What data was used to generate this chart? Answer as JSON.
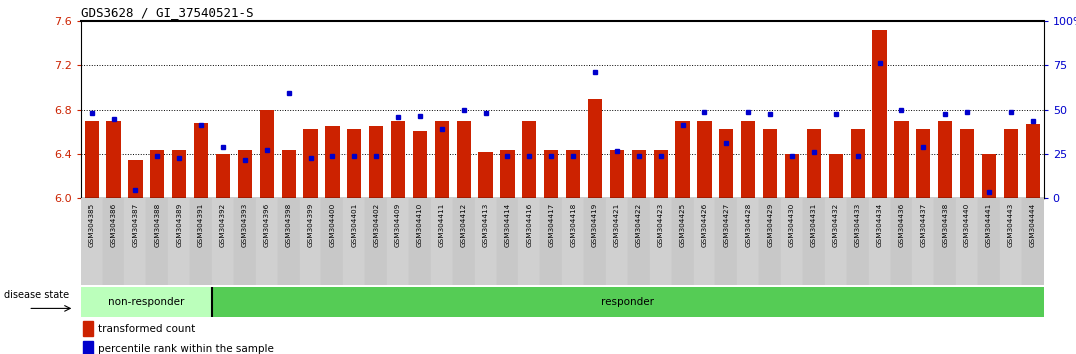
{
  "title": "GDS3628 / GI_37540521-S",
  "samples": [
    "GSM304385",
    "GSM304386",
    "GSM304387",
    "GSM304388",
    "GSM304389",
    "GSM304391",
    "GSM304392",
    "GSM304393",
    "GSM304396",
    "GSM304398",
    "GSM304399",
    "GSM304400",
    "GSM304401",
    "GSM304402",
    "GSM304409",
    "GSM304410",
    "GSM304411",
    "GSM304412",
    "GSM304413",
    "GSM304414",
    "GSM304416",
    "GSM304417",
    "GSM304418",
    "GSM304419",
    "GSM304421",
    "GSM304422",
    "GSM304423",
    "GSM304425",
    "GSM304426",
    "GSM304427",
    "GSM304428",
    "GSM304429",
    "GSM304430",
    "GSM304431",
    "GSM304432",
    "GSM304433",
    "GSM304434",
    "GSM304436",
    "GSM304437",
    "GSM304438",
    "GSM304440",
    "GSM304441",
    "GSM304443",
    "GSM304444"
  ],
  "bar_values": [
    6.7,
    6.7,
    6.35,
    6.44,
    6.44,
    6.68,
    6.4,
    6.44,
    6.8,
    6.44,
    6.63,
    6.65,
    6.63,
    6.65,
    6.7,
    6.61,
    6.7,
    6.7,
    6.42,
    6.44,
    6.7,
    6.44,
    6.44,
    6.9,
    6.44,
    6.44,
    6.44,
    6.7,
    6.7,
    6.63,
    6.7,
    6.63,
    6.4,
    6.63,
    6.4,
    6.63,
    7.52,
    6.7,
    6.63,
    6.7,
    6.63,
    6.4,
    6.63,
    6.67
  ],
  "percentile_values": [
    6.77,
    6.72,
    6.07,
    6.38,
    6.36,
    6.66,
    6.46,
    6.35,
    6.44,
    6.95,
    6.36,
    6.38,
    6.38,
    6.38,
    6.73,
    6.74,
    6.63,
    6.8,
    6.77,
    6.38,
    6.38,
    6.38,
    6.38,
    7.14,
    6.43,
    6.38,
    6.38,
    6.66,
    6.78,
    6.5,
    6.78,
    6.76,
    6.38,
    6.42,
    6.76,
    6.38,
    7.22,
    6.8,
    6.46,
    6.76,
    6.78,
    6.06,
    6.78,
    6.7
  ],
  "non_responder_count": 6,
  "ylim_left": [
    6.0,
    7.6
  ],
  "ylim_right": [
    0,
    100
  ],
  "yticks_left": [
    6.0,
    6.4,
    6.8,
    7.2,
    7.6
  ],
  "ytick_labels_right": [
    "0",
    "25",
    "50",
    "75",
    "100%"
  ],
  "ytick_vals_right": [
    0,
    25,
    50,
    75,
    100
  ],
  "bar_color": "#cc2200",
  "percentile_color": "#0000cc",
  "bg_color": "#ffffff",
  "non_responder_bg": "#bbffbb",
  "responder_bg": "#55cc55",
  "label_color_left": "#cc2200",
  "label_color_right": "#0000cc"
}
